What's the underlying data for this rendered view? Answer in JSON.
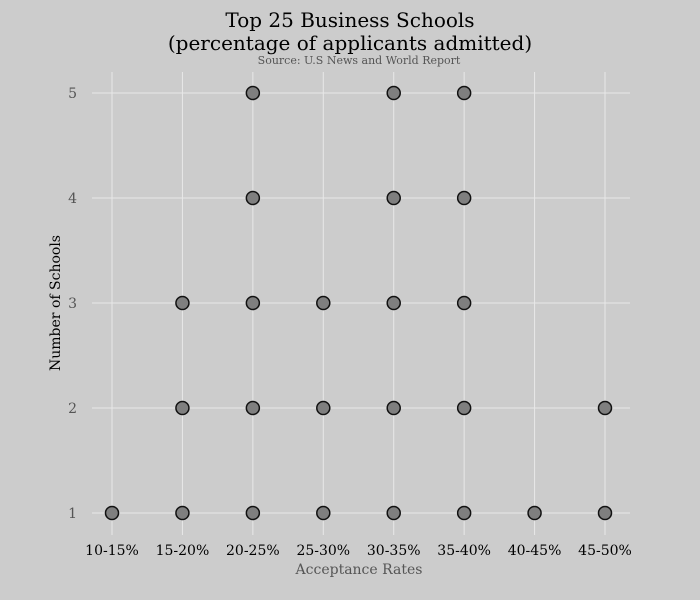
{
  "chart_data": {
    "type": "scatter",
    "title_lines": [
      "Top 25 Business Schools",
      "(percentage of applicants admitted)"
    ],
    "subtitle": "Source: U.S News and World Report",
    "xlabel": "Acceptance Rates",
    "ylabel": "Number of Schools",
    "categories": [
      "10-15%",
      "15-20%",
      "20-25%",
      "25-30%",
      "30-35%",
      "35-40%",
      "40-45%",
      "45-50%"
    ],
    "y_ticks": [
      1,
      2,
      3,
      4,
      5
    ],
    "ylim": [
      0.8,
      5.2
    ],
    "grid": true,
    "colors": {
      "background": "#cccccc",
      "marker_fill": "#7f7f7f",
      "marker_edge": "#111111",
      "grid": "#e8e8e8"
    },
    "points": [
      {
        "x": "10-15%",
        "y": 1
      },
      {
        "x": "15-20%",
        "y": 1
      },
      {
        "x": "15-20%",
        "y": 2
      },
      {
        "x": "15-20%",
        "y": 3
      },
      {
        "x": "20-25%",
        "y": 1
      },
      {
        "x": "20-25%",
        "y": 2
      },
      {
        "x": "20-25%",
        "y": 3
      },
      {
        "x": "20-25%",
        "y": 4
      },
      {
        "x": "20-25%",
        "y": 5
      },
      {
        "x": "25-30%",
        "y": 1
      },
      {
        "x": "25-30%",
        "y": 2
      },
      {
        "x": "25-30%",
        "y": 3
      },
      {
        "x": "30-35%",
        "y": 1
      },
      {
        "x": "30-35%",
        "y": 2
      },
      {
        "x": "30-35%",
        "y": 3
      },
      {
        "x": "30-35%",
        "y": 4
      },
      {
        "x": "30-35%",
        "y": 5
      },
      {
        "x": "35-40%",
        "y": 1
      },
      {
        "x": "35-40%",
        "y": 2
      },
      {
        "x": "35-40%",
        "y": 3
      },
      {
        "x": "35-40%",
        "y": 4
      },
      {
        "x": "35-40%",
        "y": 5
      },
      {
        "x": "40-45%",
        "y": 1
      },
      {
        "x": "45-50%",
        "y": 1
      },
      {
        "x": "45-50%",
        "y": 2
      }
    ]
  }
}
